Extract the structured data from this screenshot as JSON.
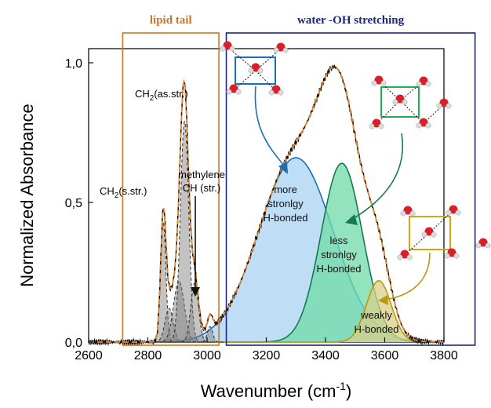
{
  "chart_data": {
    "type": "line",
    "title": "",
    "xlabel_main": "Wavenumber (cm",
    "xlabel_sup": "-1",
    "xlabel_close": ")",
    "ylabel": "Normalized Absorbance",
    "xlim": [
      2600,
      3800
    ],
    "ylim": [
      0.0,
      1.05
    ],
    "xticks": [
      2600,
      2800,
      3000,
      3200,
      3400,
      3600,
      3800
    ],
    "xtick_labels": [
      "2600",
      "2800",
      "3000",
      "3200",
      "3400",
      "3600",
      "3800"
    ],
    "yticks": [
      0.0,
      0.5,
      1.0
    ],
    "ytick_labels": [
      "0,0",
      "0,5",
      "1,0"
    ],
    "grid": false,
    "regions": [
      {
        "label": "lipid tail",
        "x_range": [
          2715,
          3040
        ],
        "color": "#c8762a"
      },
      {
        "label": "water -OH stretching",
        "x_range": [
          3065,
          3905
        ],
        "color": "#1c2582"
      }
    ],
    "water_components": [
      {
        "center": 3300,
        "height": 0.66,
        "width": 125,
        "color": "#1b6fb3",
        "fill": "#a9d2f0",
        "label_lines": [
          "more",
          "stronlgy",
          "H-bonded"
        ]
      },
      {
        "center": 3455,
        "height": 0.64,
        "width": 70,
        "color": "#157a52",
        "fill": "#6fdba8",
        "label_lines": [
          "less",
          "stronlgy",
          "H-bonded"
        ]
      },
      {
        "center": 3580,
        "height": 0.22,
        "width": 42,
        "color": "#b89a12",
        "fill": "#d8cf8a",
        "label_lines": [
          "weakly",
          "H-bonded"
        ]
      }
    ],
    "lipid_components": [
      {
        "center": 2852,
        "height": 0.43,
        "width": 9
      },
      {
        "center": 2872,
        "height": 0.12,
        "width": 14
      },
      {
        "center": 2905,
        "height": 0.22,
        "width": 18
      },
      {
        "center": 2924,
        "height": 0.79,
        "width": 14
      },
      {
        "center": 2958,
        "height": 0.21,
        "width": 13
      },
      {
        "center": 3010,
        "height": 0.055,
        "width": 9
      }
    ],
    "peak_labels": [
      {
        "text": "CH",
        "sub": "2",
        "rest": "(as.str.)"
      },
      {
        "text": "CH",
        "sub": "2",
        "rest": "(s.str.)"
      },
      {
        "text": "methylene",
        "sub": "",
        "rest": ""
      },
      {
        "text": "CH (str.)",
        "sub": "",
        "rest": ""
      }
    ],
    "series": [
      {
        "name": "",
        "style": "black solid",
        "kind": "measured spectrum"
      },
      {
        "name": "",
        "style": "orange dashed",
        "kind": "fit envelope"
      }
    ]
  }
}
